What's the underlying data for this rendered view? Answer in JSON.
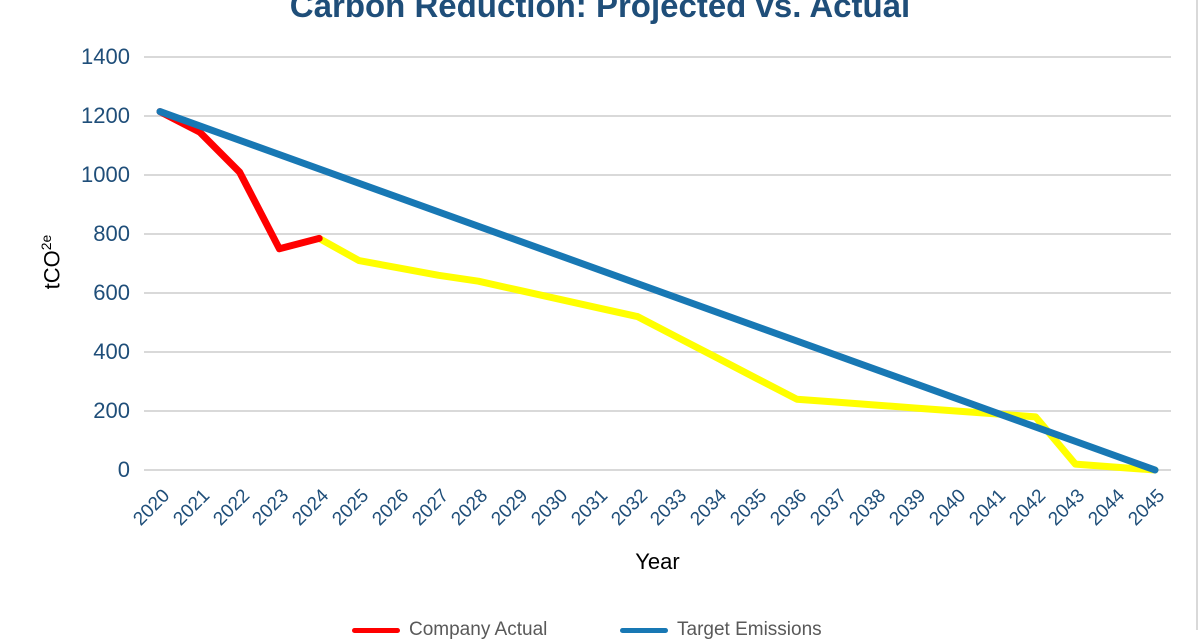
{
  "page": {
    "background": "#FFFFFF"
  },
  "chart_data": {
    "type": "line",
    "title": "Carbon Reduction: Projected vs. Actual",
    "title_color": "#1F4E79",
    "xlabel": "Year",
    "ylabel_main": "tCO",
    "ylabel_sup": "2e",
    "axis_label_color": "#1F4E79",
    "gridline_color": "#D9D9D9",
    "grid": "horizontal",
    "ylim": [
      0,
      1400
    ],
    "y_ticks": [
      1400,
      1200,
      1000,
      800,
      600,
      400,
      200,
      0
    ],
    "x_ticks": [
      2020,
      2021,
      2022,
      2023,
      2024,
      2025,
      2026,
      2027,
      2028,
      2029,
      2030,
      2031,
      2032,
      2033,
      2034,
      2035,
      2036,
      2037,
      2038,
      2039,
      2040,
      2041,
      2042,
      2043,
      2044,
      2045
    ],
    "series": [
      {
        "id": "yellow-projected",
        "name": "",
        "color": "#FFFF00",
        "x": [
          2024,
          2025,
          2026,
          2027,
          2028,
          2029,
          2030,
          2031,
          2032,
          2033,
          2034,
          2035,
          2036,
          2037,
          2038,
          2039,
          2040,
          2041,
          2042,
          2043,
          2044,
          2045
        ],
        "values": [
          785,
          710,
          685,
          660,
          640,
          610,
          580,
          550,
          520,
          450,
          380,
          310,
          240,
          230,
          220,
          210,
          200,
          190,
          180,
          20,
          10,
          0
        ]
      },
      {
        "id": "company-actual",
        "name": "Company Actual",
        "color": "#FF0000",
        "x": [
          2020,
          2021,
          2022,
          2023,
          2024
        ],
        "values": [
          1215,
          1145,
          1010,
          750,
          785
        ]
      },
      {
        "id": "target-emissions",
        "name": "Target Emissions",
        "color": "#1878B4",
        "x": [
          2020,
          2045
        ],
        "values": [
          1215,
          0
        ]
      }
    ],
    "legend": {
      "position": "bottom",
      "text_color": "#595959",
      "entries": [
        {
          "label": "Company Actual",
          "color": "#FF0000"
        },
        {
          "label": "Target Emissions",
          "color": "#1878B4"
        }
      ]
    }
  }
}
